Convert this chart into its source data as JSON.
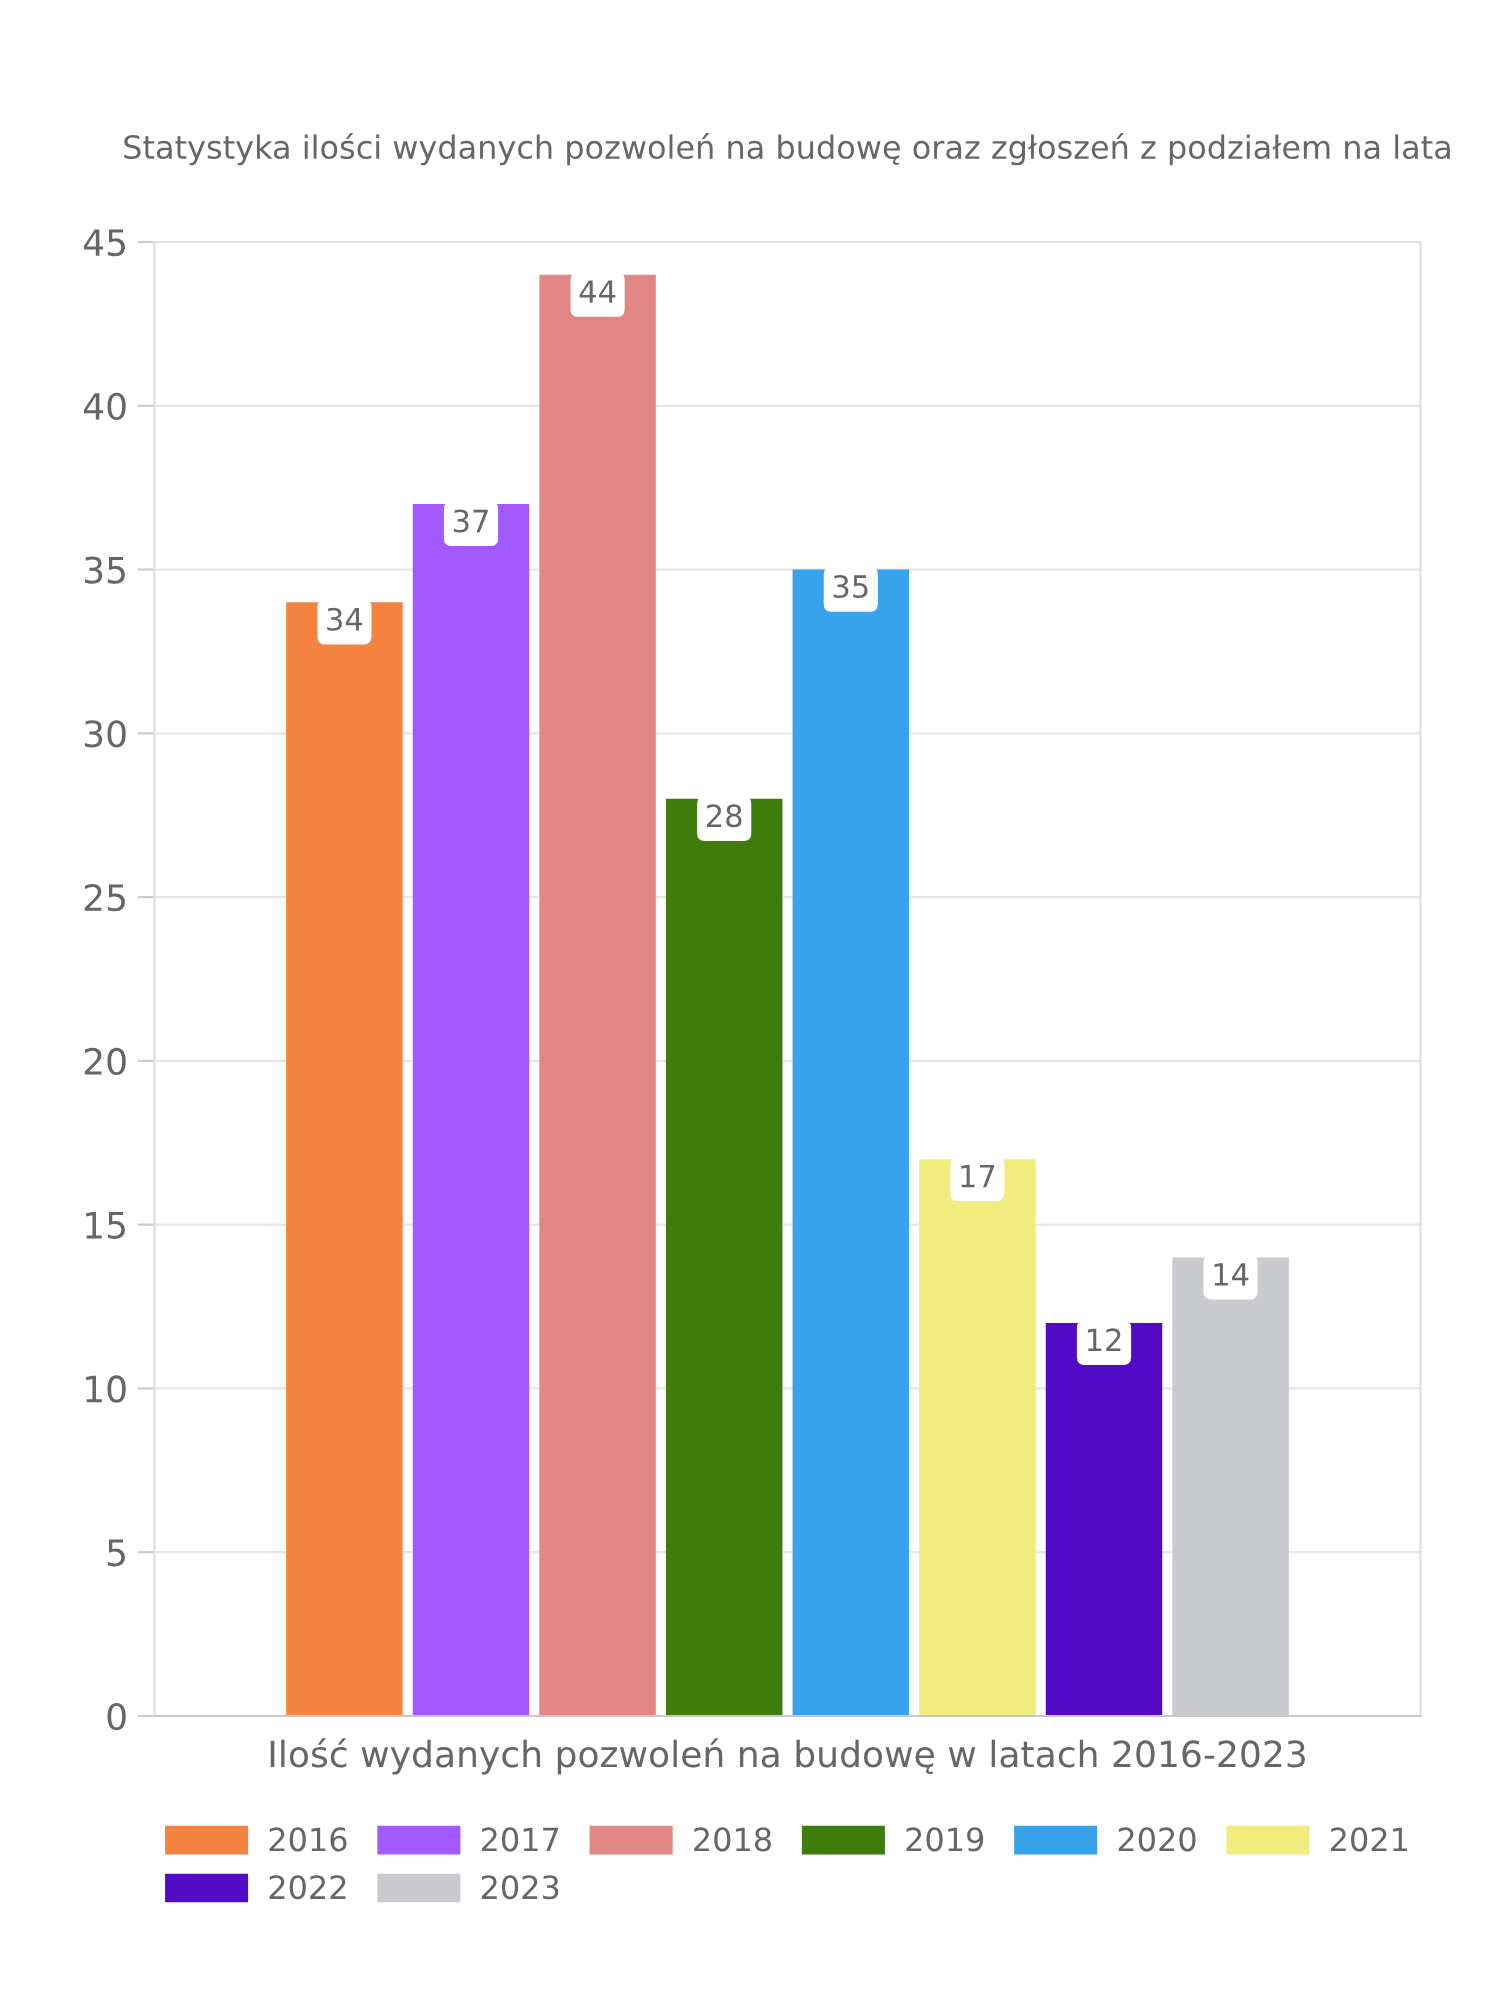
{
  "chart_data": {
    "type": "bar",
    "title": "Statystyka ilości wydanych pozwoleń na budowę oraz zgłoszeń z podziałem na lata",
    "categories": [
      "Ilość wydanych pozwoleń na budowę w latach 2016-2023"
    ],
    "series": [
      {
        "name": "2016",
        "color": "#f48342",
        "values": [
          34
        ]
      },
      {
        "name": "2017",
        "color": "#a259fe",
        "values": [
          37
        ]
      },
      {
        "name": "2018",
        "color": "#e08685",
        "values": [
          44
        ]
      },
      {
        "name": "2019",
        "color": "#3e7c0c",
        "values": [
          28
        ]
      },
      {
        "name": "2020",
        "color": "#38a3ea",
        "values": [
          35
        ]
      },
      {
        "name": "2021",
        "color": "#f0ec7e",
        "values": [
          17
        ]
      },
      {
        "name": "2022",
        "color": "#520bc4",
        "values": [
          12
        ]
      },
      {
        "name": "2023",
        "color": "#c9cacd",
        "values": [
          14
        ]
      }
    ],
    "ylim": [
      0,
      45
    ],
    "yticks": [
      0,
      5,
      10,
      15,
      20,
      25,
      30,
      35,
      40,
      45
    ],
    "grid": "y",
    "legend": "bottom",
    "data_labels": true
  }
}
